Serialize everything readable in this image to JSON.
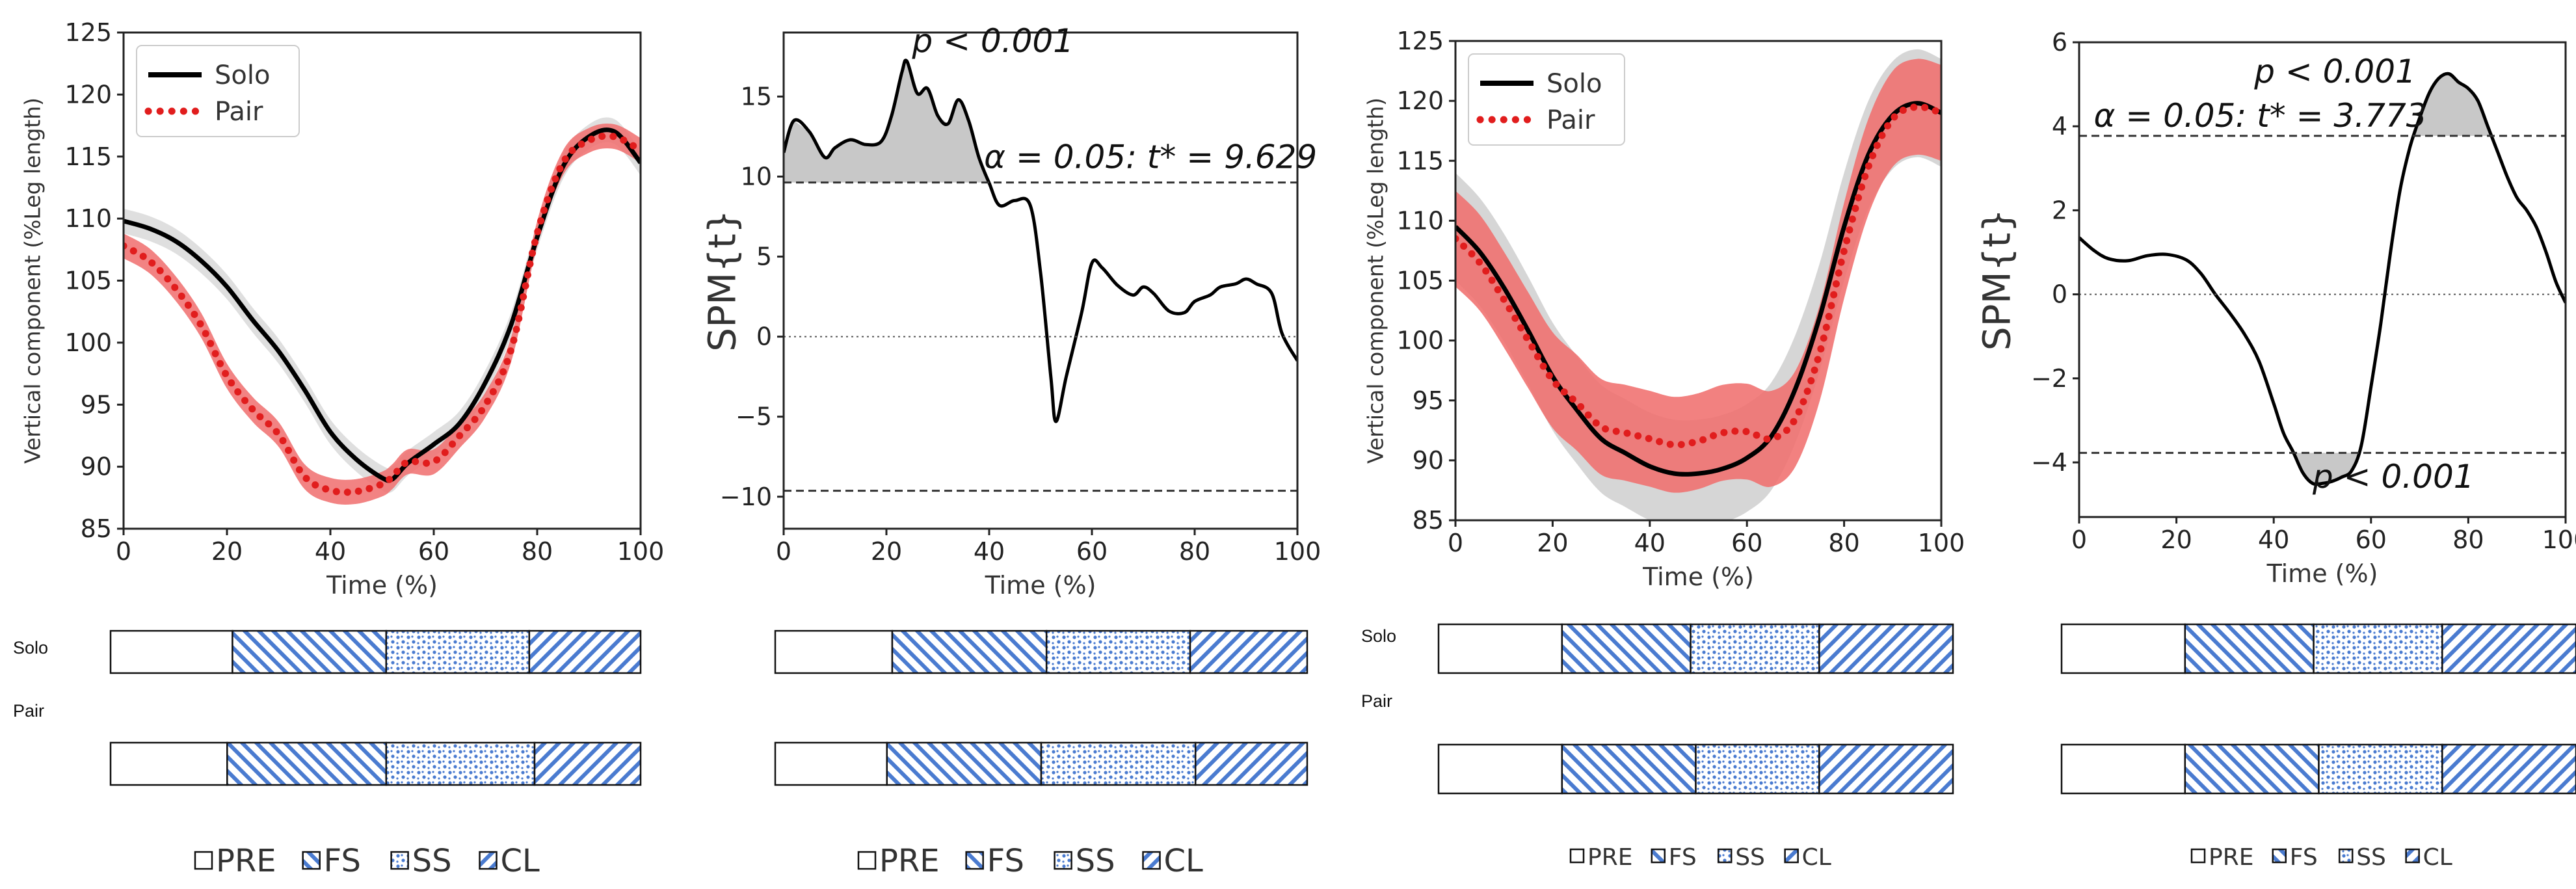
{
  "chart_data": [
    {
      "type": "line",
      "ylabel": "Vertical component (%Leg length)",
      "xlabel": "Time (%)",
      "xlim": [
        0,
        100
      ],
      "ylim": [
        85,
        125
      ],
      "xticks": [
        "0",
        "20",
        "40",
        "60",
        "80",
        "100"
      ],
      "yticks": [
        "85",
        "90",
        "95",
        "100",
        "105",
        "110",
        "115",
        "120",
        "125"
      ],
      "legend": {
        "position": "top-left",
        "entries": [
          "Solo",
          "Pair"
        ]
      },
      "series": [
        {
          "name": "Solo",
          "style": "solid",
          "color": "#000000",
          "band_color": "#d9d9d9",
          "band": 1.0,
          "x": [
            0,
            5,
            10,
            15,
            20,
            25,
            30,
            35,
            40,
            45,
            50,
            52,
            55,
            60,
            65,
            70,
            75,
            80,
            85,
            90,
            95,
            100
          ],
          "y": [
            109.8,
            109.2,
            108.2,
            106.6,
            104.5,
            101.8,
            99.3,
            96.2,
            92.8,
            90.6,
            89.1,
            89.0,
            90.3,
            91.8,
            93.5,
            96.8,
            101.5,
            108.5,
            114.2,
            116.6,
            117.0,
            114.5
          ]
        },
        {
          "name": "Pair",
          "style": "dotted",
          "color": "#e11d1d",
          "band_color": "#f07272",
          "band": 1.0,
          "x": [
            0,
            5,
            10,
            15,
            20,
            25,
            30,
            35,
            40,
            45,
            50,
            52,
            55,
            60,
            65,
            70,
            75,
            80,
            85,
            90,
            95,
            100
          ],
          "y": [
            107.8,
            106.6,
            104.4,
            101.4,
            97.3,
            94.6,
            92.6,
            89.2,
            88.1,
            88.0,
            88.6,
            89.2,
            90.4,
            90.4,
            92.5,
            95.0,
            99.5,
            108.8,
            114.5,
            116.3,
            116.6,
            115.5
          ]
        }
      ]
    },
    {
      "type": "line",
      "ylabel": "SPM{t}",
      "xlabel": "Time (%)",
      "xlim": [
        0,
        100
      ],
      "ylim": [
        -12,
        19
      ],
      "xticks": [
        "0",
        "20",
        "40",
        "60",
        "80",
        "100"
      ],
      "yticks": [
        "−10",
        "−5",
        "0",
        "5",
        "10",
        "15"
      ],
      "threshold": 9.629,
      "threshold_label": "α = 0.05:  t* = 9.629",
      "cluster_labels": [
        {
          "text": "p < 0.001",
          "x": 36,
          "y": 16.8
        }
      ],
      "series": [
        {
          "name": "",
          "style": "solid",
          "color": "#000000",
          "x": [
            0,
            2,
            5,
            8,
            10,
            13,
            16,
            19,
            21,
            23,
            24,
            26,
            28,
            30,
            32,
            34,
            36,
            38,
            40,
            42,
            45,
            48,
            50,
            52,
            53,
            55,
            58,
            60,
            62,
            65,
            68,
            70,
            72,
            75,
            78,
            80,
            83,
            85,
            88,
            90,
            92,
            95,
            97,
            100
          ],
          "y": [
            11.5,
            13.5,
            12.8,
            11.2,
            11.8,
            12.3,
            12.0,
            12.2,
            13.8,
            16.5,
            17.2,
            15.2,
            15.5,
            13.8,
            13.3,
            14.8,
            13.5,
            11.2,
            9.6,
            8.2,
            8.5,
            8.2,
            4.0,
            -2.5,
            -5.3,
            -2.5,
            1.5,
            4.6,
            4.3,
            3.2,
            2.6,
            3.1,
            2.7,
            1.6,
            1.5,
            2.2,
            2.6,
            3.1,
            3.3,
            3.6,
            3.3,
            2.7,
            0.2,
            -1.5
          ]
        }
      ]
    },
    {
      "type": "line",
      "ylabel": "Vertical component (%Leg length)",
      "xlabel": "Time (%)",
      "xlim": [
        0,
        100
      ],
      "ylim": [
        85,
        125
      ],
      "xticks": [
        "0",
        "20",
        "40",
        "60",
        "80",
        "100"
      ],
      "yticks": [
        "85",
        "90",
        "95",
        "100",
        "105",
        "110",
        "115",
        "120",
        "125"
      ],
      "legend": {
        "position": "top-left",
        "entries": [
          "Solo",
          "Pair"
        ]
      },
      "series": [
        {
          "name": "Solo",
          "style": "solid",
          "color": "#000000",
          "band_color": "#cfcfcf",
          "band": 4.5,
          "x": [
            0,
            5,
            10,
            15,
            20,
            25,
            30,
            35,
            40,
            45,
            50,
            55,
            60,
            65,
            70,
            75,
            80,
            85,
            90,
            95,
            100
          ],
          "y": [
            109.5,
            107.4,
            104.4,
            100.8,
            97.0,
            94.2,
            91.8,
            90.6,
            89.5,
            88.9,
            88.9,
            89.3,
            90.2,
            92.0,
            96.0,
            102.0,
            109.5,
            115.5,
            118.8,
            119.8,
            119.0
          ]
        },
        {
          "name": "Pair",
          "style": "dotted",
          "color": "#e11d1d",
          "band_color": "#f0706e",
          "band": 4.0,
          "x": [
            0,
            5,
            10,
            15,
            20,
            25,
            30,
            35,
            40,
            45,
            50,
            55,
            60,
            65,
            70,
            75,
            80,
            85,
            90,
            95,
            100
          ],
          "y": [
            108.5,
            106.5,
            103.4,
            100.0,
            96.7,
            94.8,
            92.8,
            92.3,
            91.8,
            91.3,
            91.6,
            92.3,
            92.4,
            91.8,
            93.5,
            99.0,
            107.5,
            114.5,
            118.5,
            119.5,
            119.0
          ]
        }
      ]
    },
    {
      "type": "line",
      "ylabel": "SPM{t}",
      "xlabel": "Time (%)",
      "xlim": [
        0,
        100
      ],
      "ylim": [
        -5.3,
        6
      ],
      "xticks": [
        "0",
        "20",
        "40",
        "60",
        "80",
        "100"
      ],
      "yticks": [
        "−4",
        "−2",
        "0",
        "2",
        "4",
        "6"
      ],
      "threshold": 3.773,
      "threshold_label": "α = 0.05:  t* = 3.773",
      "cluster_labels": [
        {
          "text": "p < 0.001",
          "x": 74,
          "y": 5.0
        },
        {
          "text": "p < 0.001",
          "x": 75,
          "y": -4.6
        }
      ],
      "series": [
        {
          "name": "",
          "style": "solid",
          "color": "#000000",
          "x": [
            0,
            3,
            6,
            10,
            14,
            18,
            22,
            25,
            28,
            31,
            34,
            37,
            40,
            42,
            44,
            46,
            48,
            50,
            52,
            54,
            56,
            58,
            60,
            62,
            64,
            66,
            68,
            70,
            72,
            74,
            76,
            78,
            80,
            82,
            84,
            86,
            88,
            90,
            92,
            94,
            96,
            98,
            100
          ],
          "y": [
            1.35,
            1.05,
            0.85,
            0.8,
            0.92,
            0.95,
            0.82,
            0.5,
            0.0,
            -0.45,
            -0.95,
            -1.6,
            -2.6,
            -3.3,
            -3.75,
            -4.25,
            -4.5,
            -4.5,
            -4.45,
            -4.35,
            -4.2,
            -3.6,
            -2.2,
            -0.7,
            1.0,
            2.5,
            3.5,
            4.2,
            4.8,
            5.15,
            5.25,
            5.05,
            4.9,
            4.6,
            4.0,
            3.4,
            2.8,
            2.3,
            2.0,
            1.6,
            1.0,
            0.3,
            -0.2
          ]
        }
      ]
    }
  ],
  "phase_bars": {
    "row_labels": [
      "Solo",
      "Pair"
    ],
    "legend": [
      "PRE",
      "FS",
      "SS",
      "CL"
    ],
    "panels": [
      {
        "solo": [
          23,
          52,
          79
        ],
        "pair": [
          22,
          52,
          80
        ]
      },
      {
        "solo": [
          22,
          51,
          78
        ],
        "pair": [
          21,
          50,
          79
        ]
      },
      {
        "solo": [
          24,
          49,
          74
        ],
        "pair": [
          24,
          50,
          74
        ]
      },
      {
        "solo": [
          24,
          49,
          74
        ],
        "pair": [
          24,
          50,
          74
        ]
      }
    ]
  },
  "colors": {
    "hatch": "#4a7bd0",
    "threshold": "#333333",
    "cluster": "#c8c8c8"
  }
}
